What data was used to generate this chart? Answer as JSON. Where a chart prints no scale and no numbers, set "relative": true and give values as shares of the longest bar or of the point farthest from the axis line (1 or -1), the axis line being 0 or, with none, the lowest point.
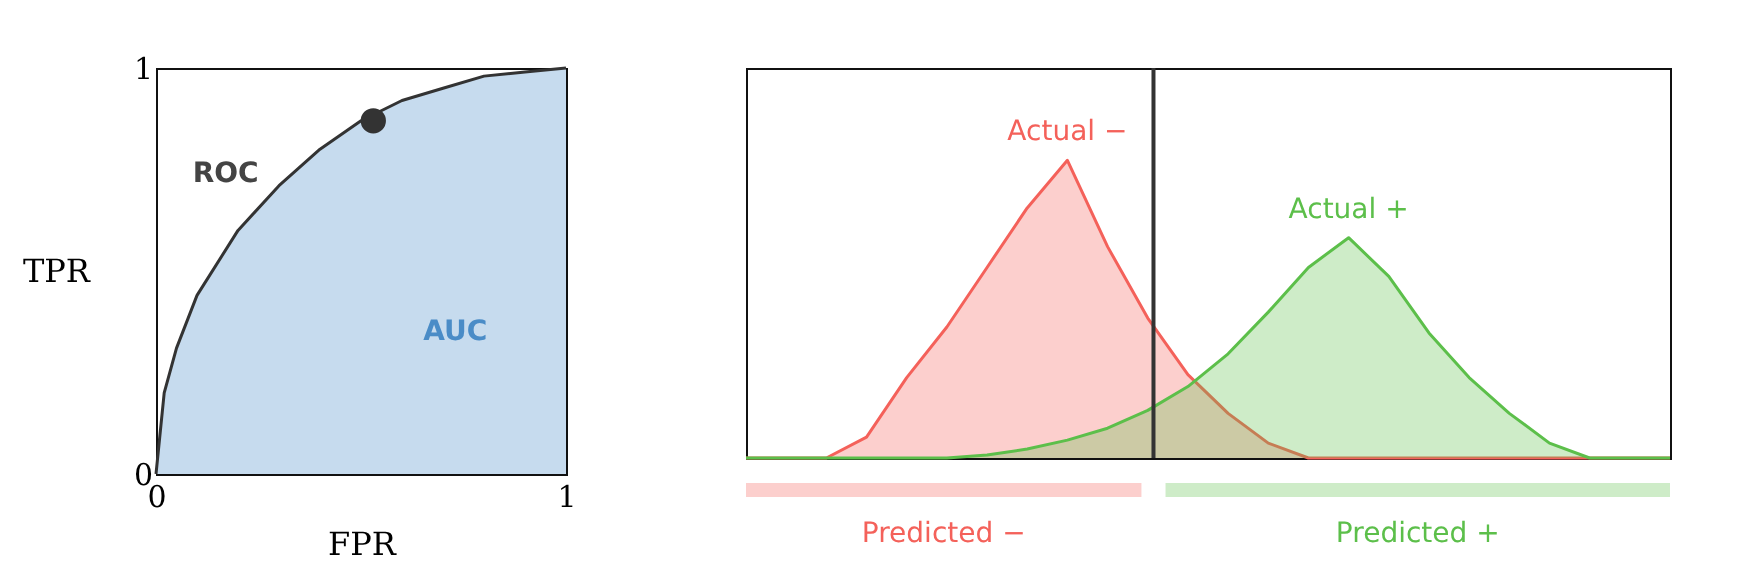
{
  "chart_data": [
    {
      "type": "area",
      "xlabel": "FPR",
      "ylabel": "TPR",
      "xlim": [
        0,
        1
      ],
      "ylim": [
        0,
        1
      ],
      "xticks": [
        0,
        1
      ],
      "yticks": [
        0,
        1
      ],
      "x": [
        0,
        0.02,
        0.05,
        0.1,
        0.2,
        0.3,
        0.4,
        0.5,
        0.6,
        0.7,
        0.8,
        0.9,
        1
      ],
      "series": [
        {
          "type": "area",
          "color": "#c6dbee",
          "values": [
            0,
            0.2,
            0.31,
            0.44,
            0.6,
            0.71,
            0.8,
            0.87,
            0.92,
            0.95,
            0.98,
            0.99,
            1
          ]
        },
        {
          "type": "scatter",
          "color": "#333333",
          "marker": "circle",
          "x": [
            0.53
          ],
          "values": [
            0.87
          ]
        }
      ],
      "annotations": [
        "ROC",
        "AUC"
      ]
    },
    {
      "type": "area",
      "relative": true,
      "categories": [
        null,
        null,
        null,
        null,
        null,
        null,
        null,
        null,
        null,
        null,
        null,
        null,
        null,
        null,
        null,
        null,
        null,
        null,
        null,
        null,
        null,
        null,
        null,
        null
      ],
      "series": [
        {
          "name": "Actual −",
          "color": "#f4615a",
          "values": [
            0,
            0,
            0,
            0.07,
            0.27,
            0.44,
            0.64,
            0.84,
            1.0,
            0.71,
            0.47,
            0.28,
            0.15,
            0.05,
            0,
            0,
            0,
            0,
            0,
            0,
            0,
            0,
            0,
            0
          ]
        },
        {
          "name": "Actual +",
          "color": "#5cbf4a",
          "values": [
            0,
            0,
            0,
            0,
            0,
            0,
            0.01,
            0.03,
            0.06,
            0.1,
            0.16,
            0.24,
            0.35,
            0.49,
            0.64,
            0.74,
            0.61,
            0.42,
            0.27,
            0.15,
            0.05,
            0,
            0,
            0
          ]
        }
      ],
      "annotations": [
        "Predicted −",
        "Predicted +"
      ]
    }
  ]
}
